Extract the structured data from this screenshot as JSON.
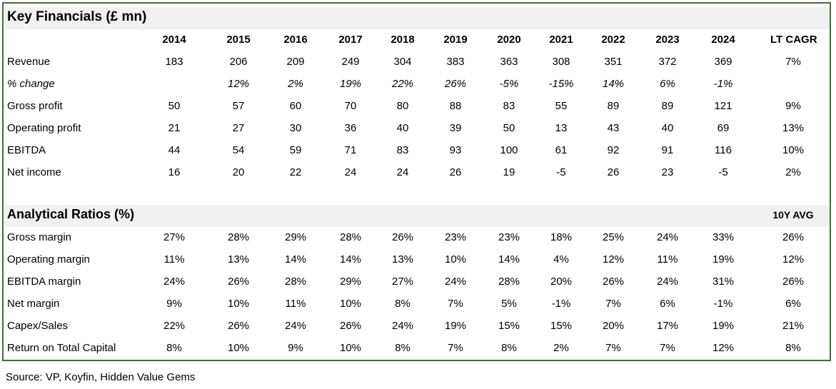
{
  "key_financials": {
    "title": "Key Financials (£ mn)",
    "years": [
      "2014",
      "2015",
      "2016",
      "2017",
      "2018",
      "2019",
      "2020",
      "2021",
      "2022",
      "2023",
      "2024"
    ],
    "summary_header": "LT CAGR",
    "rows": [
      {
        "label": "Revenue",
        "values": [
          "183",
          "206",
          "209",
          "249",
          "304",
          "383",
          "363",
          "308",
          "351",
          "372",
          "369"
        ],
        "summary": "7%"
      },
      {
        "label": "% change",
        "values": [
          "",
          "12%",
          "2%",
          "19%",
          "22%",
          "26%",
          "-5%",
          "-15%",
          "14%",
          "6%",
          "-1%"
        ],
        "summary": ""
      },
      {
        "label": "Gross profit",
        "values": [
          "50",
          "57",
          "60",
          "70",
          "80",
          "88",
          "83",
          "55",
          "89",
          "89",
          "121"
        ],
        "summary": "9%"
      },
      {
        "label": "Operating profit",
        "values": [
          "21",
          "27",
          "30",
          "36",
          "40",
          "39",
          "50",
          "13",
          "43",
          "40",
          "69"
        ],
        "summary": "13%"
      },
      {
        "label": "EBITDA",
        "values": [
          "44",
          "54",
          "59",
          "71",
          "83",
          "93",
          "100",
          "61",
          "92",
          "91",
          "116"
        ],
        "summary": "10%"
      },
      {
        "label": "Net income",
        "values": [
          "16",
          "20",
          "22",
          "24",
          "24",
          "26",
          "19",
          "-5",
          "26",
          "23",
          "-5"
        ],
        "summary": "2%"
      }
    ]
  },
  "analytical_ratios": {
    "title": "Analytical Ratios (%)",
    "summary_header": "10Y AVG",
    "rows": [
      {
        "label": "Gross margin",
        "values": [
          "27%",
          "28%",
          "29%",
          "28%",
          "26%",
          "23%",
          "23%",
          "18%",
          "25%",
          "24%",
          "33%"
        ],
        "summary": "26%"
      },
      {
        "label": "Operating margin",
        "values": [
          "11%",
          "13%",
          "14%",
          "14%",
          "13%",
          "10%",
          "14%",
          "4%",
          "12%",
          "11%",
          "19%"
        ],
        "summary": "12%"
      },
      {
        "label": "EBITDA margin",
        "values": [
          "24%",
          "26%",
          "28%",
          "29%",
          "27%",
          "24%",
          "28%",
          "20%",
          "26%",
          "24%",
          "31%"
        ],
        "summary": "26%"
      },
      {
        "label": "Net margin",
        "values": [
          "9%",
          "10%",
          "11%",
          "10%",
          "8%",
          "7%",
          "5%",
          "-1%",
          "7%",
          "6%",
          "-1%"
        ],
        "summary": "6%"
      },
      {
        "label": "Capex/Sales",
        "values": [
          "22%",
          "26%",
          "24%",
          "26%",
          "24%",
          "19%",
          "15%",
          "15%",
          "20%",
          "17%",
          "19%"
        ],
        "summary": "21%"
      },
      {
        "label": "Return on Total Capital",
        "values": [
          "8%",
          "10%",
          "9%",
          "10%",
          "8%",
          "7%",
          "8%",
          "2%",
          "7%",
          "7%",
          "12%"
        ],
        "summary": "8%"
      }
    ]
  },
  "source": "Source: VP, Koyfin, Hidden Value Gems",
  "colors": {
    "border": "#3f6f32",
    "section_background": "#f1f1f1"
  }
}
